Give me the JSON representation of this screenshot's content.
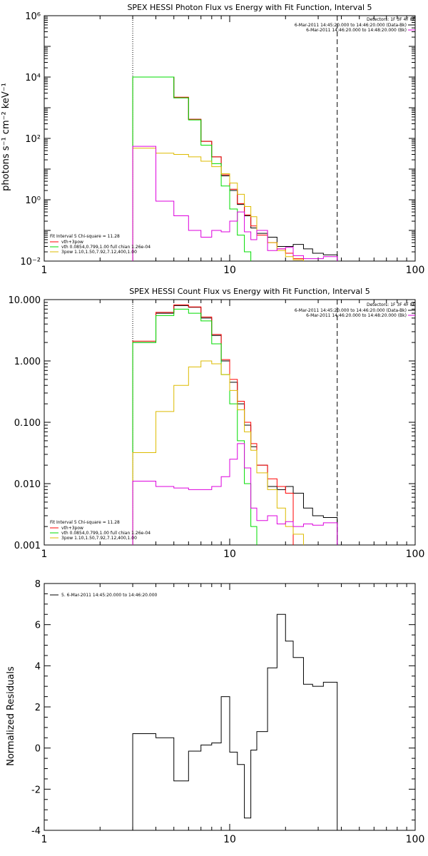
{
  "chart_data": [
    {
      "type": "line",
      "title": "SPEX HESSI Photon Flux vs Energy with Fit Function, Interval 5",
      "xlabel": "",
      "ylabel": "photons s⁻¹ cm⁻² keV⁻¹",
      "xscale": "log",
      "yscale": "log",
      "xlim": [
        1,
        100
      ],
      "ylim": [
        0.01,
        1000000
      ],
      "xticks": [
        1,
        10,
        100
      ],
      "xtick_labels": [
        "1",
        "10",
        "100"
      ],
      "yticks": [
        0.01,
        1,
        100,
        10000,
        1000000
      ],
      "ytick_labels": [
        "10⁻²",
        "10⁰",
        "10²",
        "10⁴",
        "10⁶"
      ],
      "vlines": [
        {
          "x": 3,
          "style": "dotted"
        },
        {
          "x": 38,
          "style": "dashed"
        }
      ],
      "legend_topright": {
        "heading": "Detectors: 1F 3F 4F 8F",
        "entries": [
          {
            "label": "6-Mar-2011 14:45:20.000 to 14:46:20.000 (Data-Bk)",
            "color": "#000000"
          },
          {
            "label": "6-Mar-2011 14:46:20.000 to 14:48:20.000 (Bk)",
            "color": "#dd00dd"
          }
        ]
      },
      "legend_bottomleft": {
        "heading": "Fit Interval 5   Chi-square = 11.28",
        "entries": [
          {
            "label": "vth+3pow",
            "color": "#ff0000"
          },
          {
            "label": "vth 0.0854,0.799,1.00  full chian 1.26e-04",
            "color": "#00dd00"
          },
          {
            "label": "3pow 1.10,1.50,7.92,7.12,400,1.00",
            "color": "#ddbb00"
          }
        ]
      },
      "bin_edges": [
        3.0,
        4.0,
        5.0,
        6.0,
        7.0,
        8.0,
        9.0,
        10.0,
        11.0,
        12.0,
        13.0,
        14.0,
        16.0,
        18.0,
        20.0,
        22.0,
        25.0,
        28.0,
        32.0,
        38.0
      ],
      "series": [
        {
          "name": "Data-Bk",
          "color": "#000000",
          "values": [
            10000,
            10000,
            2100,
            420,
            80,
            25,
            6.0,
            2.0,
            0.7,
            0.3,
            0.12,
            0.08,
            0.06,
            0.03,
            0.03,
            0.035,
            0.025,
            0.018,
            0.016
          ]
        },
        {
          "name": "vth+3pow",
          "color": "#ff0000",
          "values": [
            10000,
            10000,
            2200,
            420,
            80,
            25,
            6.5,
            2.2,
            0.75,
            0.32,
            0.14,
            0.07,
            0.04,
            0.025,
            0.018,
            0.012,
            null,
            null,
            null
          ]
        },
        {
          "name": "vth",
          "color": "#00dd00",
          "values": [
            10000,
            10000,
            2100,
            400,
            60,
            15,
            2.8,
            0.5,
            0.07,
            0.02,
            null,
            null,
            null,
            null,
            null,
            null,
            null,
            null,
            null
          ]
        },
        {
          "name": "3pow",
          "color": "#ddbb00",
          "values": [
            48,
            33,
            30,
            25,
            18,
            12,
            7.0,
            3.5,
            1.5,
            0.6,
            0.28,
            0.1,
            0.04,
            0.022,
            0.014,
            0.011,
            null,
            null,
            null
          ]
        },
        {
          "name": "Bk",
          "color": "#dd00dd",
          "values": [
            55,
            0.9,
            0.3,
            0.1,
            0.06,
            0.1,
            0.09,
            0.2,
            0.4,
            0.09,
            0.05,
            0.1,
            0.022,
            0.025,
            0.028,
            0.015,
            0.012,
            0.012,
            0.014
          ]
        }
      ]
    },
    {
      "type": "line",
      "title": "SPEX HESSI Count Flux vs Energy with Fit Function, Interval 5",
      "xlabel": "",
      "ylabel": "",
      "xscale": "log",
      "yscale": "log",
      "xlim": [
        1,
        100
      ],
      "ylim": [
        0.001,
        10
      ],
      "xticks": [
        1,
        10,
        100
      ],
      "xtick_labels": [
        "1",
        "10",
        "100"
      ],
      "yticks": [
        0.001,
        0.01,
        0.1,
        1,
        10
      ],
      "ytick_labels": [
        "0.001",
        "0.010",
        "0.100",
        "1.000",
        "10.000"
      ],
      "vlines": [
        {
          "x": 3,
          "style": "dotted"
        },
        {
          "x": 38,
          "style": "dashed"
        }
      ],
      "legend_topright": {
        "heading": "Detectors: 1F 3F 4F 8F",
        "entries": [
          {
            "label": "6-Mar-2011 14:45:20.000 to 14:46:20.000 (Data-Bk)",
            "color": "#000000"
          },
          {
            "label": "6-Mar-2011 14:46:20.000 to 14:48:20.000 (Bk)",
            "color": "#dd00dd"
          }
        ]
      },
      "legend_bottomleft": {
        "heading": "Fit Interval 5   Chi-square = 11.28",
        "entries": [
          {
            "label": "vth+3pow",
            "color": "#ff0000"
          },
          {
            "label": "vth 0.0854,0.799,1.00  full chian 1.26e-04",
            "color": "#00dd00"
          },
          {
            "label": "3pow 1.10,1.50,7.92,7.12,400,1.00",
            "color": "#ddbb00"
          }
        ]
      },
      "bin_edges": [
        3.0,
        4.0,
        5.0,
        6.0,
        7.0,
        8.0,
        9.0,
        10.0,
        11.0,
        12.0,
        13.0,
        14.0,
        16.0,
        18.0,
        20.0,
        22.0,
        25.0,
        28.0,
        32.0,
        38.0
      ],
      "series": [
        {
          "name": "Data-Bk",
          "color": "#000000",
          "values": [
            2.0,
            6.0,
            8.0,
            7.5,
            5.0,
            2.6,
            1.0,
            0.45,
            0.2,
            0.09,
            0.04,
            0.02,
            0.009,
            0.008,
            0.009,
            0.007,
            0.004,
            0.003,
            0.0028
          ]
        },
        {
          "name": "vth+3pow",
          "color": "#ff0000",
          "values": [
            2.1,
            6.2,
            8.2,
            7.6,
            5.2,
            2.7,
            1.05,
            0.5,
            0.22,
            0.1,
            0.045,
            0.02,
            0.012,
            0.009,
            0.007,
            null,
            null,
            null,
            null
          ]
        },
        {
          "name": "vth",
          "color": "#00dd00",
          "values": [
            2.0,
            5.5,
            7.0,
            6.0,
            4.5,
            1.9,
            0.6,
            0.2,
            0.05,
            0.01,
            0.002,
            null,
            null,
            null,
            null,
            null,
            null,
            null,
            null
          ]
        },
        {
          "name": "3pow",
          "color": "#ddbb00",
          "values": [
            0.032,
            0.15,
            0.4,
            0.8,
            1.0,
            0.9,
            0.6,
            0.33,
            0.16,
            0.07,
            0.035,
            0.015,
            0.008,
            0.004,
            0.002,
            0.0015,
            null,
            null,
            null
          ]
        },
        {
          "name": "Bk",
          "color": "#dd00dd",
          "values": [
            0.011,
            0.009,
            0.0085,
            0.008,
            0.008,
            0.009,
            0.013,
            0.025,
            0.045,
            0.018,
            0.004,
            0.0025,
            0.003,
            0.0022,
            0.0024,
            0.002,
            0.0022,
            0.0021,
            0.0023
          ]
        }
      ]
    },
    {
      "type": "line",
      "title": "",
      "xlabel": "",
      "ylabel": "Normalized Residuals",
      "xscale": "log",
      "yscale": "linear",
      "xlim": [
        1,
        100
      ],
      "ylim": [
        -4,
        8
      ],
      "xticks": [
        1,
        10,
        100
      ],
      "xtick_labels": [
        "1",
        "10",
        "100"
      ],
      "yticks": [
        -4,
        -2,
        0,
        2,
        4,
        6,
        8
      ],
      "ytick_labels": [
        "-4",
        "-2",
        "0",
        "2",
        "4",
        "6",
        "8"
      ],
      "legend_topleft": {
        "entries": [
          {
            "label": "5. 6-Mar-2011 14:45:20.000 to 14:46:20.000",
            "color": "#000000"
          }
        ]
      },
      "bin_edges": [
        3.0,
        4.0,
        5.0,
        6.0,
        7.0,
        8.0,
        9.0,
        10.0,
        11.0,
        12.0,
        13.0,
        14.0,
        16.0,
        18.0,
        20.0,
        22.0,
        25.0,
        28.0,
        32.0,
        38.0
      ],
      "series": [
        {
          "name": "",
          "color": "#000000",
          "values": [
            0.7,
            0.5,
            -1.6,
            -0.15,
            0.15,
            0.25,
            2.5,
            -0.2,
            -0.8,
            -3.4,
            -0.1,
            0.8,
            3.9,
            6.5,
            5.2,
            4.4,
            3.1,
            3.0,
            3.2
          ]
        }
      ]
    }
  ]
}
